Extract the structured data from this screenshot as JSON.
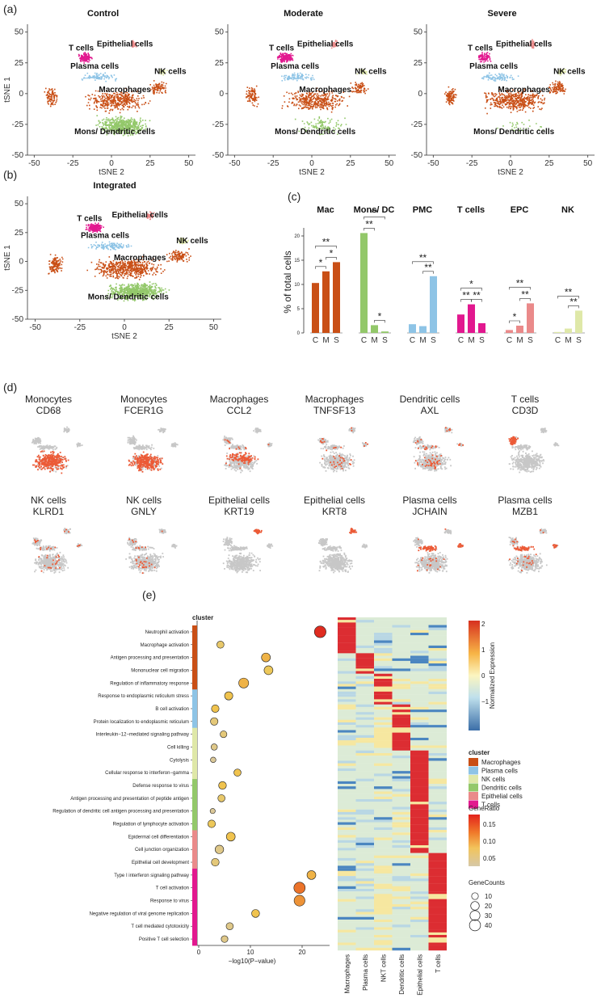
{
  "panel_labels": {
    "a": "(a)",
    "b": "(b)",
    "c": "(c)",
    "d": "(d)",
    "e": "(e)"
  },
  "colors": {
    "Macrophages": "#c94f16",
    "Plasma cells": "#8ec4e6",
    "NK cells": "#dfe8a8",
    "Dendritic cells": "#93c86a",
    "Epithelial cells": "#ea8a8a",
    "T cells": "#e2188f",
    "gray": "#c7c7c7",
    "expr": "#ec5a36"
  },
  "tsne": {
    "xlabel": "tSNE 2",
    "ylabel": "tSNE 1",
    "xticks": [
      "-50",
      "-25",
      "0",
      "25",
      "50"
    ],
    "yticks": [
      "50",
      "25",
      "0",
      "-25",
      "-50"
    ],
    "panels": [
      {
        "title": "Control",
        "labels": [
          "T cells",
          "Epithelial cells",
          "Plasma cells",
          "NK cells",
          "Macrophages",
          "Mons/ Dendritic cells"
        ]
      },
      {
        "title": "Moderate",
        "labels": [
          "T cells",
          "Epithelial cells",
          "Plasma cells",
          "NK cells",
          "Macrophages",
          "Mons/ Dendritic cells"
        ]
      },
      {
        "title": "Severe",
        "labels": [
          "T cells",
          "Epithelial cells",
          "Plasma cells",
          "NK cells",
          "Macrophages",
          "Mons/ Dendritic cells"
        ]
      },
      {
        "title": "Integrated",
        "labels": [
          "T cells",
          "Epithelial cells",
          "Plasma cells",
          "NK cells",
          "Macrophages",
          "Mons/ Dendritic cells"
        ]
      }
    ]
  },
  "chart_data": [
    {
      "type": "bar",
      "ylabel": "% of total cells",
      "categories": [
        "C",
        "M",
        "S"
      ],
      "yticks": [
        "0",
        "5",
        "10",
        "15",
        "20"
      ],
      "ylim": [
        0,
        21
      ],
      "groups": [
        {
          "name": "Mac",
          "color": "#c94f16",
          "values": [
            10.3,
            12.7,
            14.6
          ],
          "sig": [
            {
              "a": 0,
              "b": 1,
              "text": "*"
            },
            {
              "a": 1,
              "b": 2,
              "text": "*"
            },
            {
              "a": 0,
              "b": 2,
              "text": "**"
            }
          ]
        },
        {
          "name": "Mons/ DC",
          "color": "#93c86a",
          "values": [
            20.6,
            1.6,
            0.3
          ],
          "sig": [
            {
              "a": 1,
              "b": 2,
              "text": "*"
            },
            {
              "a": 0,
              "b": 1,
              "text": "**"
            },
            {
              "a": 0,
              "b": 2,
              "text": "**"
            }
          ]
        },
        {
          "name": "PMC",
          "color": "#8ec4e6",
          "values": [
            1.8,
            1.4,
            11.7
          ],
          "sig": [
            {
              "a": 1,
              "b": 2,
              "text": "**"
            },
            {
              "a": 0,
              "b": 2,
              "text": "**"
            }
          ]
        },
        {
          "name": "T cells",
          "color": "#e2188f",
          "values": [
            3.8,
            5.9,
            2.0
          ],
          "sig": [
            {
              "a": 0,
              "b": 1,
              "text": "**"
            },
            {
              "a": 1,
              "b": 2,
              "text": "**"
            },
            {
              "a": 0,
              "b": 2,
              "text": "*"
            }
          ]
        },
        {
          "name": "EPC",
          "color": "#ea8a8a",
          "values": [
            0.6,
            1.5,
            6.1
          ],
          "sig": [
            {
              "a": 0,
              "b": 1,
              "text": "*"
            },
            {
              "a": 1,
              "b": 2,
              "text": "**"
            },
            {
              "a": 0,
              "b": 2,
              "text": "**"
            }
          ]
        },
        {
          "name": "NK",
          "color": "#dfe8a8",
          "values": [
            0.2,
            0.9,
            4.6
          ],
          "sig": [
            {
              "a": 1,
              "b": 2,
              "text": "**"
            },
            {
              "a": 0,
              "b": 2,
              "text": "**"
            }
          ]
        }
      ]
    },
    {
      "type": "scatter",
      "xlabel": "−log10(P−value)",
      "xticks": [
        "0",
        "10",
        "20"
      ],
      "xlim": [
        0,
        25
      ],
      "cluster_title": "cluster",
      "terms": [
        {
          "label": "Neutrophil activation",
          "cluster": "Macrophages",
          "value": 23.5,
          "ratio": 0.2,
          "count": 45
        },
        {
          "label": "Macrophage activation",
          "cluster": "Macrophages",
          "value": 4.2,
          "ratio": 0.08,
          "count": 12
        },
        {
          "label": "Antigen processing and presentation",
          "cluster": "Macrophages",
          "value": 13.0,
          "ratio": 0.11,
          "count": 22
        },
        {
          "label": "Mononuclear cell migration",
          "cluster": "Macrophages",
          "value": 13.5,
          "ratio": 0.09,
          "count": 22
        },
        {
          "label": "Regulation of inflammatory response",
          "cluster": "Macrophages",
          "value": 8.7,
          "ratio": 0.11,
          "count": 30
        },
        {
          "label": "Response to endoplasmic reticulum stress",
          "cluster": "Plasma cells",
          "value": 5.8,
          "ratio": 0.1,
          "count": 18
        },
        {
          "label": "B cell activation",
          "cluster": "Plasma cells",
          "value": 3.2,
          "ratio": 0.1,
          "count": 14
        },
        {
          "label": "Protein localization to endoplasmic reticulum",
          "cluster": "Plasma cells",
          "value": 3.0,
          "ratio": 0.07,
          "count": 14
        },
        {
          "label": "Interleukin−12−mediated signaling pathway",
          "cluster": "NK cells",
          "value": 4.8,
          "ratio": 0.07,
          "count": 10
        },
        {
          "label": "Cell killing",
          "cluster": "NK cells",
          "value": 3.0,
          "ratio": 0.06,
          "count": 8
        },
        {
          "label": "Cytolysis",
          "cluster": "NK cells",
          "value": 2.8,
          "ratio": 0.05,
          "count": 5
        },
        {
          "label": "Cellular response to interferon−gamma",
          "cluster": "NK cells",
          "value": 7.5,
          "ratio": 0.1,
          "count": 12
        },
        {
          "label": "Defense response to virus",
          "cluster": "Dendritic cells",
          "value": 4.6,
          "ratio": 0.1,
          "count": 15
        },
        {
          "label": "Antigen processing and presentation of peptide antigen",
          "cluster": "Dendritic cells",
          "value": 4.4,
          "ratio": 0.08,
          "count": 12
        },
        {
          "label": "Regulation of dendritic cell antigen processing and presentation",
          "cluster": "Dendritic cells",
          "value": 2.7,
          "ratio": 0.05,
          "count": 4
        },
        {
          "label": "Regulation of lymphocyte activation",
          "cluster": "Dendritic cells",
          "value": 2.5,
          "ratio": 0.09,
          "count": 14
        },
        {
          "label": "Epidermal cell differentiation",
          "cluster": "Epithelial cells",
          "value": 6.2,
          "ratio": 0.1,
          "count": 22
        },
        {
          "label": "Cell junction organization",
          "cluster": "Epithelial cells",
          "value": 4.0,
          "ratio": 0.06,
          "count": 20
        },
        {
          "label": "Epithelial cell development",
          "cluster": "Epithelial cells",
          "value": 3.2,
          "ratio": 0.07,
          "count": 15
        },
        {
          "label": "Type I interferon signaling pathway",
          "cluster": "T cells",
          "value": 21.8,
          "ratio": 0.11,
          "count": 22
        },
        {
          "label": "T cell activation",
          "cluster": "T cells",
          "value": 19.5,
          "ratio": 0.15,
          "count": 42
        },
        {
          "label": "Response to virus",
          "cluster": "T cells",
          "value": 19.5,
          "ratio": 0.13,
          "count": 38
        },
        {
          "label": "Negative regulation of viral genome replication",
          "cluster": "T cells",
          "value": 11.0,
          "ratio": 0.1,
          "count": 16
        },
        {
          "label": "T cell mediated cytotoxicity",
          "cluster": "T cells",
          "value": 6.0,
          "ratio": 0.06,
          "count": 12
        },
        {
          "label": "Positive T cell selection",
          "cluster": "T cells",
          "value": 5.0,
          "ratio": 0.06,
          "count": 10
        }
      ]
    },
    {
      "type": "heatmap",
      "columns": [
        "Macrophages",
        "Plasma cells",
        "NKT cells",
        "Dendritic cells",
        "Epithelial cells",
        "T cells"
      ],
      "row_blocks": [
        0.11,
        0.06,
        0.09,
        0.14,
        0.31,
        0.29
      ]
    }
  ],
  "feature_plots": [
    {
      "cell": "Monocytes",
      "gene": "CD68",
      "pattern": "bottom"
    },
    {
      "cell": "Monocytes",
      "gene": "FCER1G",
      "pattern": "bottom"
    },
    {
      "cell": "Macrophages",
      "gene": "CCL2",
      "pattern": "middle"
    },
    {
      "cell": "Macrophages",
      "gene": "TNFSF13",
      "pattern": "sparse"
    },
    {
      "cell": "Dendritic cells",
      "gene": "AXL",
      "pattern": "sparse"
    },
    {
      "cell": "T cells",
      "gene": "CD3D",
      "pattern": "top"
    },
    {
      "cell": "NK cells",
      "gene": "KLRD1",
      "pattern": "sparse"
    },
    {
      "cell": "NK cells",
      "gene": "GNLY",
      "pattern": "sparse"
    },
    {
      "cell": "Epithelial cells",
      "gene": "KRT19",
      "pattern": "epi"
    },
    {
      "cell": "Epithelial cells",
      "gene": "KRT8",
      "pattern": "epi"
    },
    {
      "cell": "Plasma cells",
      "gene": "JCHAIN",
      "pattern": "band"
    },
    {
      "cell": "Plasma cells",
      "gene": "MZB1",
      "pattern": "band"
    }
  ],
  "legends": {
    "expression": {
      "title": "Normalized Expression",
      "ticks": [
        "2",
        "1",
        "0",
        "−1"
      ]
    },
    "cluster": {
      "title": "cluster",
      "items": [
        "Macrophages",
        "Plasma cells",
        "NK cells",
        "Dendritic cells",
        "Epithelial cells",
        "T cells"
      ]
    },
    "generatio": {
      "title": "GeneRatio",
      "ticks": [
        "0.15",
        "0.10",
        "0.05"
      ]
    },
    "genecounts": {
      "title": "GeneCounts",
      "items": [
        "10",
        "20",
        "30",
        "40"
      ]
    }
  }
}
